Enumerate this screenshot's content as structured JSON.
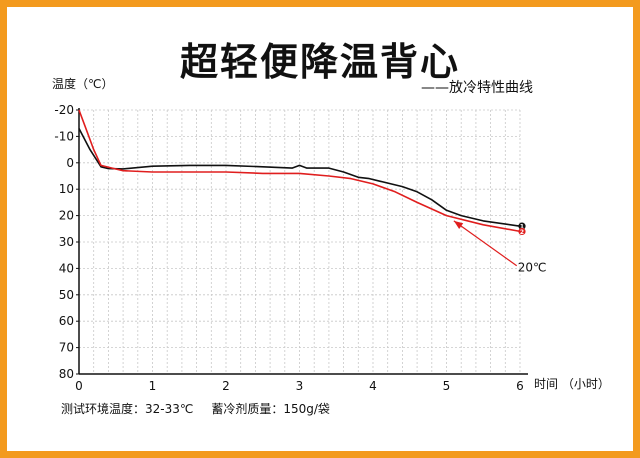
{
  "colors": {
    "border": "#f39a1e",
    "grid": "#c8c8c8",
    "series1": "#111111",
    "series2": "#e01e1e"
  },
  "title": "超轻便降温背心",
  "legend_text": "——放冷特性曲线",
  "footer": {
    "env_temp": "测试环境温度：32-33℃",
    "mass": "蓄冷剂质量：150g/袋"
  },
  "chart_data": {
    "type": "line",
    "title": "超轻便降温背心",
    "ylabel": "温度（℃）",
    "xlabel": "时间 （小时）",
    "xlim": [
      0,
      6
    ],
    "ylim": [
      -20,
      80
    ],
    "y_inverted": true,
    "grid": true,
    "x_ticks": [
      0,
      1,
      2,
      3,
      4,
      5,
      6
    ],
    "x_tick_labels": [
      "0",
      "1",
      "2",
      "3",
      "4",
      "5",
      "6"
    ],
    "y_ticks": [
      -20,
      -10,
      0,
      10,
      20,
      30,
      40,
      50,
      60,
      70,
      80
    ],
    "y_tick_labels": [
      "-20",
      "-10",
      "0",
      "10",
      "20",
      "30",
      "40",
      "50",
      "60",
      "70",
      "80"
    ],
    "series": [
      {
        "name": "1",
        "color": "#111111",
        "points": [
          [
            0,
            -13
          ],
          [
            0.15,
            -5
          ],
          [
            0.3,
            1.5
          ],
          [
            0.4,
            2.2
          ],
          [
            0.6,
            2.3
          ],
          [
            1,
            1.3
          ],
          [
            1.5,
            1
          ],
          [
            2,
            1
          ],
          [
            2.5,
            1.5
          ],
          [
            2.9,
            2
          ],
          [
            3,
            1
          ],
          [
            3.1,
            2
          ],
          [
            3.4,
            2
          ],
          [
            3.6,
            3.5
          ],
          [
            3.8,
            5.5
          ],
          [
            3.95,
            6
          ],
          [
            4.1,
            7
          ],
          [
            4.4,
            9
          ],
          [
            4.6,
            11
          ],
          [
            4.8,
            14
          ],
          [
            5,
            18
          ],
          [
            5.2,
            20
          ],
          [
            5.5,
            22
          ],
          [
            6,
            24
          ]
        ],
        "end_label": "1"
      },
      {
        "name": "2",
        "color": "#e01e1e",
        "points": [
          [
            0,
            -20
          ],
          [
            0.08,
            -14
          ],
          [
            0.2,
            -5
          ],
          [
            0.3,
            1
          ],
          [
            0.45,
            2
          ],
          [
            0.6,
            3
          ],
          [
            1,
            3.5
          ],
          [
            1.5,
            3.5
          ],
          [
            2,
            3.5
          ],
          [
            2.5,
            4
          ],
          [
            3,
            4
          ],
          [
            3.4,
            5
          ],
          [
            3.7,
            6
          ],
          [
            4,
            8
          ],
          [
            4.3,
            11
          ],
          [
            4.6,
            15
          ],
          [
            5,
            20
          ],
          [
            5.5,
            23.5
          ],
          [
            6,
            26
          ]
        ],
        "end_label": "2"
      }
    ],
    "annotations": [
      {
        "text": "20℃",
        "xy": [
          5.1,
          22
        ],
        "text_xy": [
          6.2,
          40.5
        ],
        "color": "#e01e1e"
      }
    ]
  }
}
